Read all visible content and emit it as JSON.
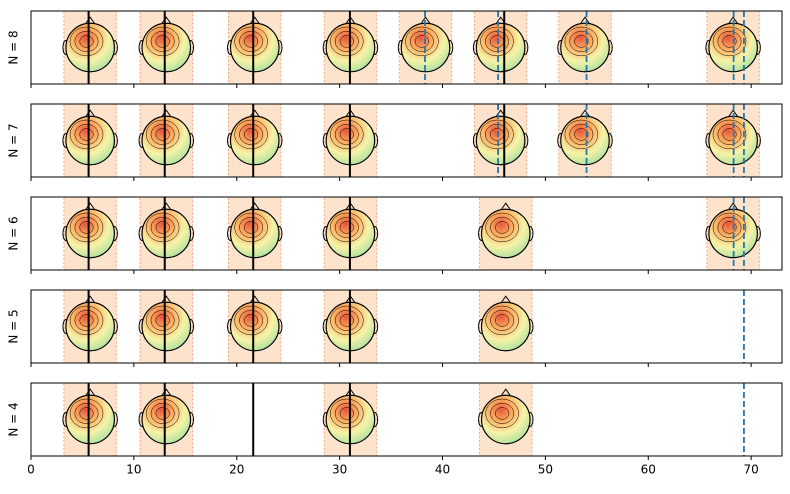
{
  "chart_data": [
    {
      "type": "event",
      "ylabel": "N = 8",
      "xlim": [
        0,
        73
      ],
      "xticks": [
        0,
        10,
        20,
        30,
        40,
        50,
        60,
        70
      ],
      "tick_labels": false,
      "regions": [
        [
          3.2,
          8.3
        ],
        [
          10.6,
          15.7
        ],
        [
          19.2,
          24.3
        ],
        [
          28.5,
          33.6
        ],
        [
          35.8,
          40.9
        ],
        [
          43.1,
          48.2
        ],
        [
          51.3,
          56.4
        ],
        [
          65.7,
          70.8
        ]
      ],
      "solid_lines": [
        5.6,
        13,
        21.6,
        31,
        46
      ],
      "dashed_lines": [
        38.3,
        45.4,
        54,
        68.3,
        69.3
      ],
      "region_color": "#fde3cc",
      "solid_color": "#000000",
      "dashed_color": "#1f77b4"
    },
    {
      "type": "event",
      "ylabel": "N = 7",
      "xlim": [
        0,
        73
      ],
      "xticks": [
        0,
        10,
        20,
        30,
        40,
        50,
        60,
        70
      ],
      "tick_labels": false,
      "regions": [
        [
          3.2,
          8.3
        ],
        [
          10.6,
          15.7
        ],
        [
          19.2,
          24.3
        ],
        [
          28.5,
          33.6
        ],
        [
          43.1,
          48.2
        ],
        [
          51.3,
          56.4
        ],
        [
          65.7,
          70.8
        ]
      ],
      "solid_lines": [
        5.6,
        13,
        21.6,
        31,
        46
      ],
      "dashed_lines": [
        45.4,
        54,
        68.3,
        69.3
      ],
      "region_color": "#fde3cc",
      "solid_color": "#000000",
      "dashed_color": "#1f77b4"
    },
    {
      "type": "event",
      "ylabel": "N = 6",
      "xlim": [
        0,
        73
      ],
      "xticks": [
        0,
        10,
        20,
        30,
        40,
        50,
        60,
        70
      ],
      "tick_labels": false,
      "regions": [
        [
          3.2,
          8.3
        ],
        [
          10.6,
          15.7
        ],
        [
          19.2,
          24.3
        ],
        [
          28.5,
          33.6
        ],
        [
          43.6,
          48.7
        ],
        [
          65.7,
          70.8
        ]
      ],
      "solid_lines": [
        5.6,
        13,
        21.6,
        31
      ],
      "dashed_lines": [
        68.3,
        69.3
      ],
      "region_color": "#fde3cc",
      "solid_color": "#000000",
      "dashed_color": "#1f77b4"
    },
    {
      "type": "event",
      "ylabel": "N = 5",
      "xlim": [
        0,
        73
      ],
      "xticks": [
        0,
        10,
        20,
        30,
        40,
        50,
        60,
        70
      ],
      "tick_labels": false,
      "regions": [
        [
          3.2,
          8.3
        ],
        [
          10.6,
          15.7
        ],
        [
          19.2,
          24.3
        ],
        [
          28.5,
          33.6
        ],
        [
          43.6,
          48.7
        ]
      ],
      "solid_lines": [
        5.6,
        13,
        21.6,
        31
      ],
      "dashed_lines": [
        69.3
      ],
      "region_color": "#fde3cc",
      "solid_color": "#000000",
      "dashed_color": "#1f77b4"
    },
    {
      "type": "event",
      "ylabel": "N = 4",
      "xlim": [
        0,
        73
      ],
      "xticks": [
        0,
        10,
        20,
        30,
        40,
        50,
        60,
        70
      ],
      "tick_labels": true,
      "regions": [
        [
          3.2,
          8.3
        ],
        [
          10.6,
          15.7
        ],
        [
          28.5,
          33.6
        ],
        [
          43.6,
          48.7
        ]
      ],
      "solid_lines": [
        5.6,
        13,
        21.6,
        31
      ],
      "dashed_lines": [
        69.3
      ],
      "region_color": "#fde3cc",
      "solid_color": "#000000",
      "dashed_color": "#1f77b4"
    }
  ]
}
